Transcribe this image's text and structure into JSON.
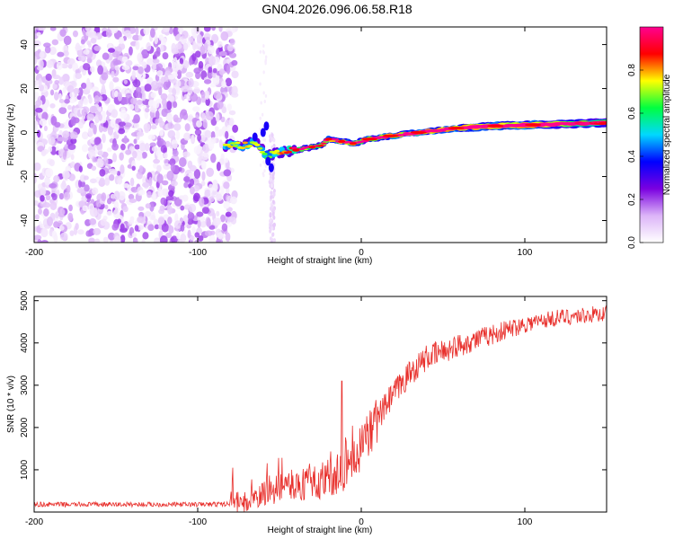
{
  "title": "GN04.2026.096.06.58.R18",
  "chart_data": [
    {
      "type": "heatmap",
      "xlabel": "Height of straight line (km)",
      "ylabel": "Frequency (Hz)",
      "xlim": [
        -200,
        150
      ],
      "ylim": [
        -50,
        48
      ],
      "xticks": [
        -200,
        -100,
        0,
        100
      ],
      "yticks": [
        -40,
        -20,
        0,
        20,
        40
      ],
      "colorbar": {
        "label": "Normalized spectral amplitude",
        "range": [
          0,
          1
        ],
        "ticks": [
          "0.0",
          "0.2",
          "0.4",
          "0.6",
          "0.8"
        ],
        "colors": [
          "#ffffff",
          "#dcb4f8",
          "#7a00e0",
          "#0000ff",
          "#00d8ff",
          "#00ff40",
          "#ffff00",
          "#ff0000",
          "#ff0090"
        ]
      },
      "ridge": [
        {
          "x": -83,
          "y": -6,
          "a": 0.4
        },
        {
          "x": -72,
          "y": -6,
          "a": 0.45
        },
        {
          "x": -65,
          "y": -4,
          "a": 0.4
        },
        {
          "x": -57,
          "y": -11,
          "a": 0.35
        },
        {
          "x": -50,
          "y": -9,
          "a": 0.45
        },
        {
          "x": -40,
          "y": -8,
          "a": 0.6
        },
        {
          "x": -33,
          "y": -7,
          "a": 0.75
        },
        {
          "x": -25,
          "y": -6,
          "a": 0.6
        },
        {
          "x": -20,
          "y": -3,
          "a": 0.8
        },
        {
          "x": -12,
          "y": -4,
          "a": 0.85
        },
        {
          "x": -5,
          "y": -5,
          "a": 0.75
        },
        {
          "x": 5,
          "y": -3,
          "a": 0.8
        },
        {
          "x": 18,
          "y": -1.5,
          "a": 0.9
        },
        {
          "x": 35,
          "y": 0,
          "a": 0.9
        },
        {
          "x": 58,
          "y": 2,
          "a": 0.95
        },
        {
          "x": 82,
          "y": 3,
          "a": 0.9
        },
        {
          "x": 105,
          "y": 3.5,
          "a": 0.9
        },
        {
          "x": 130,
          "y": 4,
          "a": 0.7
        },
        {
          "x": 150,
          "y": 4.5,
          "a": 0.6
        }
      ]
    },
    {
      "type": "line",
      "xlabel": "Height of straight line (km)",
      "ylabel": "SNR (10 * v/v)",
      "xlim": [
        -200,
        150
      ],
      "ylim": [
        0,
        5100
      ],
      "xticks": [
        -200,
        -100,
        0,
        100
      ],
      "yticks": [
        1000,
        2000,
        3000,
        4000,
        5000
      ],
      "color": "#e8302c",
      "series": [
        {
          "name": "SNR",
          "x": [
            -200,
            -150,
            -100,
            -80,
            -70,
            -60,
            -50,
            -40,
            -30,
            -20,
            -10,
            0,
            10,
            20,
            30,
            40,
            60,
            80,
            100,
            120,
            150
          ],
          "y": [
            180,
            180,
            180,
            190,
            240,
            380,
            550,
            650,
            700,
            800,
            1000,
            1500,
            2200,
            2800,
            3300,
            3650,
            3950,
            4200,
            4450,
            4600,
            4700
          ]
        }
      ],
      "spike": {
        "x": -12,
        "y": 3100
      }
    }
  ]
}
